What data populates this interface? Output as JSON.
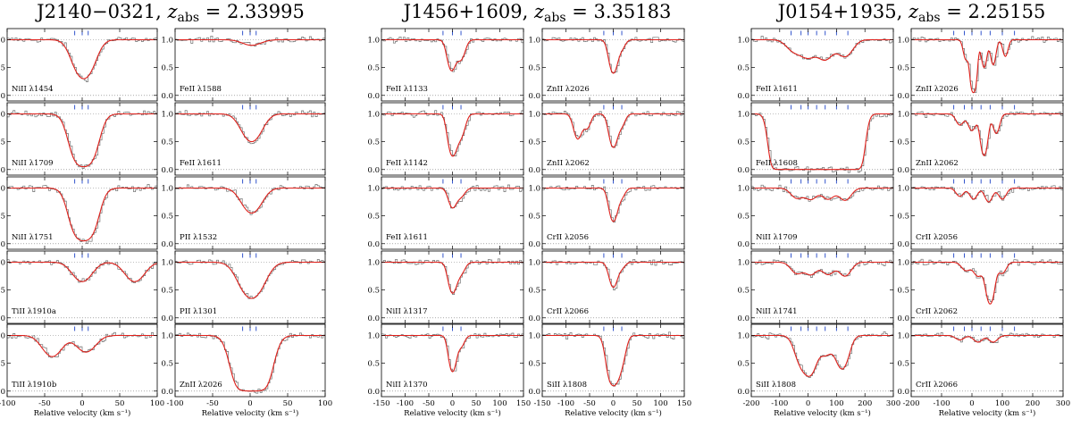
{
  "chart_data": [
    {
      "type": "line",
      "title": "J2140−0321, z_abs = 2.33995",
      "title_name": "J2140−0321, ",
      "title_z": "z",
      "title_sub": "abs",
      "title_val": " = 2.33995",
      "xlabel": "Relative velocity (km s⁻¹)",
      "xlim": [
        -100,
        100
      ],
      "xticks": [
        -100,
        -50,
        0,
        50,
        100
      ],
      "ylim": [
        -0.1,
        1.2
      ],
      "yticks": [
        "0.0",
        "0.5",
        "1.0"
      ],
      "grid": false,
      "columns": [
        {
          "panels": [
            {
              "label": "NiII λ1454",
              "components": [
                -10,
                0,
                8
              ],
              "lines": [
                {
                  "center": 2,
                  "width": 12,
                  "depth": 0.7
                }
              ]
            },
            {
              "label": "NiII λ1709",
              "components": [
                -10,
                0,
                8
              ],
              "lines": [
                {
                  "center": 2,
                  "width": 12,
                  "depth": 0.95
                }
              ]
            },
            {
              "label": "NiII λ1751",
              "components": [
                -10,
                0,
                8
              ],
              "lines": [
                {
                  "center": 2,
                  "width": 12,
                  "depth": 0.95
                }
              ]
            },
            {
              "label": "TiII λ1910a",
              "components": [
                -10,
                0,
                8
              ],
              "lines": [
                {
                  "center": 0,
                  "width": 12,
                  "depth": 0.35
                },
                {
                  "center": 70,
                  "width": 12,
                  "depth": 0.35
                }
              ]
            },
            {
              "label": "TiII λ1910b",
              "components": [
                -10,
                0,
                8
              ],
              "lines": [
                {
                  "center": -40,
                  "width": 12,
                  "depth": 0.38
                },
                {
                  "center": 5,
                  "width": 12,
                  "depth": 0.3
                }
              ]
            }
          ]
        },
        {
          "panels": [
            {
              "label": "FeII λ1588",
              "components": [
                -10,
                0,
                8
              ],
              "lines": [
                {
                  "center": 2,
                  "width": 12,
                  "depth": 0.1
                }
              ]
            },
            {
              "label": "FeII λ1611",
              "components": [
                -10,
                0,
                8
              ],
              "lines": [
                {
                  "center": 2,
                  "width": 12,
                  "depth": 0.5
                }
              ]
            },
            {
              "label": "PII λ1532",
              "components": [
                -10,
                0,
                8
              ],
              "lines": [
                {
                  "center": 2,
                  "width": 12,
                  "depth": 0.45
                }
              ]
            },
            {
              "label": "PII λ1301",
              "components": [
                -10,
                0,
                8
              ],
              "lines": [
                {
                  "center": 2,
                  "width": 14,
                  "depth": 0.65
                }
              ]
            },
            {
              "label": "ZnII λ2026",
              "components": [
                -10,
                0,
                8
              ],
              "lines": [
                {
                  "center": 2,
                  "width": 14,
                  "depth": 1.0
                }
              ]
            }
          ]
        }
      ]
    },
    {
      "type": "line",
      "title": "J1456+1609, z_abs = 3.35183",
      "title_name": "J1456+1609, ",
      "title_z": "z",
      "title_sub": "abs",
      "title_val": " = 3.35183",
      "xlabel": "Relative velocity (km s⁻¹)",
      "xlim": [
        -150,
        150
      ],
      "xticks": [
        -150,
        -100,
        -50,
        0,
        50,
        100,
        150
      ],
      "ylim": [
        -0.1,
        1.2
      ],
      "yticks": [
        "0.0",
        "0.5",
        "1.0"
      ],
      "grid": false,
      "columns": [
        {
          "panels": [
            {
              "label": "FeII λ1133",
              "components": [
                -20,
                0,
                18
              ],
              "lines": [
                {
                  "center": -2,
                  "width": 8,
                  "depth": 0.55
                },
                {
                  "center": 18,
                  "width": 8,
                  "depth": 0.35
                }
              ]
            },
            {
              "label": "FeII λ1142",
              "components": [
                -20,
                0,
                18
              ],
              "lines": [
                {
                  "center": 0,
                  "width": 8,
                  "depth": 0.75
                },
                {
                  "center": 18,
                  "width": 8,
                  "depth": 0.4
                }
              ]
            },
            {
              "label": "FeII λ1611",
              "components": [
                -20,
                0,
                18
              ],
              "lines": [
                {
                  "center": 0,
                  "width": 8,
                  "depth": 0.35
                },
                {
                  "center": 18,
                  "width": 8,
                  "depth": 0.15
                }
              ]
            },
            {
              "label": "NiII λ1317",
              "components": [
                -20,
                0,
                18
              ],
              "lines": [
                {
                  "center": 0,
                  "width": 8,
                  "depth": 0.55
                },
                {
                  "center": 18,
                  "width": 8,
                  "depth": 0.2
                }
              ]
            },
            {
              "label": "NiII λ1370",
              "components": [
                -20,
                0,
                18
              ],
              "lines": [
                {
                  "center": 0,
                  "width": 7,
                  "depth": 0.65
                },
                {
                  "center": 18,
                  "width": 7,
                  "depth": 0.2
                }
              ]
            }
          ]
        },
        {
          "panels": [
            {
              "label": "ZnII λ2026",
              "components": [
                -20,
                0,
                18
              ],
              "lines": [
                {
                  "center": 0,
                  "width": 8,
                  "depth": 0.6
                },
                {
                  "center": 18,
                  "width": 7,
                  "depth": 0.15
                }
              ]
            },
            {
              "label": "ZnII λ2062",
              "components": [
                -20,
                0,
                18
              ],
              "lines": [
                {
                  "center": -75,
                  "width": 8,
                  "depth": 0.45
                },
                {
                  "center": -55,
                  "width": 7,
                  "depth": 0.25
                },
                {
                  "center": 0,
                  "width": 8,
                  "depth": 0.6
                },
                {
                  "center": 18,
                  "width": 7,
                  "depth": 0.2
                }
              ]
            },
            {
              "label": "CrII λ2056",
              "components": [
                -20,
                0,
                18
              ],
              "lines": [
                {
                  "center": 0,
                  "width": 8,
                  "depth": 0.6
                },
                {
                  "center": 18,
                  "width": 7,
                  "depth": 0.15
                }
              ]
            },
            {
              "label": "CrII λ2066",
              "components": [
                -20,
                0,
                18
              ],
              "lines": [
                {
                  "center": 0,
                  "width": 8,
                  "depth": 0.45
                },
                {
                  "center": 18,
                  "width": 7,
                  "depth": 0.1
                }
              ]
            },
            {
              "label": "SiII λ1808",
              "components": [
                -20,
                0,
                18
              ],
              "lines": [
                {
                  "center": 0,
                  "width": 10,
                  "depth": 0.9
                },
                {
                  "center": 18,
                  "width": 8,
                  "depth": 0.4
                }
              ]
            }
          ]
        }
      ]
    },
    {
      "type": "line",
      "title": "J0154+1935, z_abs = 2.25155",
      "title_name": "J0154+1935, ",
      "title_z": "z",
      "title_sub": "abs",
      "title_val": " = 2.25155",
      "xlabel": "Relative velocity (km s⁻¹)",
      "xlim": [
        -200,
        300
      ],
      "xticks": [
        -200,
        -100,
        0,
        100,
        200,
        300
      ],
      "ylim": [
        -0.1,
        1.2
      ],
      "yticks": [
        "0.0",
        "0.5",
        "1.0"
      ],
      "grid": false,
      "columns": [
        {
          "panels": [
            {
              "label": "FeII λ1611",
              "components": [
                -60,
                -25,
                0,
                30,
                60,
                100,
                140
              ],
              "lines": [
                {
                  "center": -50,
                  "width": 25,
                  "depth": 0.2
                },
                {
                  "center": 0,
                  "width": 25,
                  "depth": 0.3
                },
                {
                  "center": 60,
                  "width": 25,
                  "depth": 0.35
                },
                {
                  "center": 130,
                  "width": 25,
                  "depth": 0.3
                }
              ]
            },
            {
              "label": "FeII λ1608",
              "components": [
                -60,
                -25,
                0,
                30,
                60,
                100,
                140
              ],
              "lines": [
                {
                  "center": -100,
                  "width": 20,
                  "depth": 1.0
                },
                {
                  "center": -40,
                  "width": 30,
                  "depth": 1.0
                },
                {
                  "center": 30,
                  "width": 30,
                  "depth": 1.0
                },
                {
                  "center": 100,
                  "width": 30,
                  "depth": 1.0
                },
                {
                  "center": 160,
                  "width": 20,
                  "depth": 1.0
                }
              ]
            },
            {
              "label": "NiII λ1709",
              "components": [
                -60,
                -25,
                0,
                30,
                60,
                100,
                140
              ],
              "lines": [
                {
                  "center": -40,
                  "width": 20,
                  "depth": 0.18
                },
                {
                  "center": 10,
                  "width": 20,
                  "depth": 0.2
                },
                {
                  "center": 70,
                  "width": 20,
                  "depth": 0.2
                },
                {
                  "center": 130,
                  "width": 20,
                  "depth": 0.22
                }
              ]
            },
            {
              "label": "NiII λ1741",
              "components": [
                -60,
                -25,
                0,
                30,
                60,
                100,
                140
              ],
              "lines": [
                {
                  "center": -40,
                  "width": 20,
                  "depth": 0.2
                },
                {
                  "center": 10,
                  "width": 20,
                  "depth": 0.22
                },
                {
                  "center": 70,
                  "width": 20,
                  "depth": 0.22
                },
                {
                  "center": 130,
                  "width": 20,
                  "depth": 0.25
                }
              ]
            },
            {
              "label": "SiII λ1808",
              "components": [
                -60,
                -25,
                0,
                30,
                60,
                100,
                140
              ],
              "lines": [
                {
                  "center": -20,
                  "width": 22,
                  "depth": 0.55
                },
                {
                  "center": 10,
                  "width": 18,
                  "depth": 0.6
                },
                {
                  "center": 60,
                  "width": 22,
                  "depth": 0.35
                },
                {
                  "center": 120,
                  "width": 20,
                  "depth": 0.6
                }
              ]
            }
          ]
        },
        {
          "panels": [
            {
              "label": "ZnII λ2026",
              "components": [
                -60,
                -25,
                0,
                30,
                60,
                100,
                140
              ],
              "lines": [
                {
                  "center": -20,
                  "width": 8,
                  "depth": 0.35
                },
                {
                  "center": 5,
                  "width": 8,
                  "depth": 0.95
                },
                {
                  "center": 40,
                  "width": 8,
                  "depth": 0.5
                },
                {
                  "center": 70,
                  "width": 8,
                  "depth": 0.45
                },
                {
                  "center": 110,
                  "width": 8,
                  "depth": 0.3
                }
              ]
            },
            {
              "label": "ZnII λ2062",
              "components": [
                -60,
                -25,
                0,
                30,
                60,
                100,
                140
              ],
              "lines": [
                {
                  "center": -40,
                  "width": 12,
                  "depth": 0.2
                },
                {
                  "center": 0,
                  "width": 12,
                  "depth": 0.3
                },
                {
                  "center": 40,
                  "width": 10,
                  "depth": 0.75
                },
                {
                  "center": 80,
                  "width": 10,
                  "depth": 0.35
                }
              ]
            },
            {
              "label": "CrII λ2056",
              "components": [
                -60,
                -25,
                0,
                30,
                60,
                100,
                140
              ],
              "lines": [
                {
                  "center": -40,
                  "width": 12,
                  "depth": 0.15
                },
                {
                  "center": 5,
                  "width": 12,
                  "depth": 0.2
                },
                {
                  "center": 55,
                  "width": 12,
                  "depth": 0.25
                },
                {
                  "center": 100,
                  "width": 12,
                  "depth": 0.2
                }
              ]
            },
            {
              "label": "CrII λ2062",
              "components": [
                -60,
                -25,
                0,
                30,
                60,
                100,
                140
              ],
              "lines": [
                {
                  "center": -20,
                  "width": 14,
                  "depth": 0.15
                },
                {
                  "center": 20,
                  "width": 14,
                  "depth": 0.25
                },
                {
                  "center": 60,
                  "width": 12,
                  "depth": 0.75
                },
                {
                  "center": 100,
                  "width": 12,
                  "depth": 0.2
                }
              ]
            },
            {
              "label": "CrII λ2066",
              "components": [
                -60,
                -25,
                0,
                30,
                60,
                100,
                140
              ],
              "lines": [
                {
                  "center": -40,
                  "width": 14,
                  "depth": 0.08
                },
                {
                  "center": 20,
                  "width": 14,
                  "depth": 0.12
                },
                {
                  "center": 70,
                  "width": 14,
                  "depth": 0.12
                }
              ]
            }
          ]
        }
      ]
    }
  ],
  "colors": {
    "data": "#6e6e6e",
    "model": "#e0201b",
    "components": "#3355cc",
    "continuum": "#e0201b",
    "zero": "#777777",
    "frame": "#000000"
  }
}
